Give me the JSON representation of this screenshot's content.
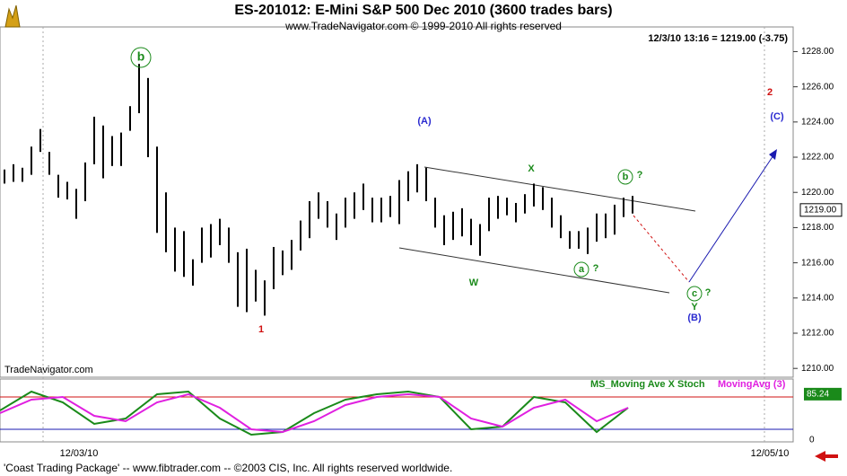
{
  "chart_data": {
    "type": "ohlc",
    "title": "ES-201012:  E-Mini S&P 500 Dec 2010  (3600 trades bars)",
    "subtitle": "www.TradeNavigator.com © 1999-2010 All rights reserved",
    "quote": "12/3/10 13:16 = 1219.00 (-3.75)",
    "watermark": "TradeNavigator.com",
    "footer": "'Coast Trading Package' -- www.fibtrader.com -- ©2003 CIS, Inc. All rights reserved worldwide.",
    "x_labels": [
      "12/03/10",
      "12/05/10"
    ],
    "high": [
      1221.3,
      1221.6,
      1221.4,
      1222.6,
      1223.6,
      1222.3,
      1221,
      1220.6,
      1220.2,
      1221.7,
      1224.3,
      1223.8,
      1223.2,
      1223.4,
      1224.9,
      1227.3,
      1226.5,
      1222.6,
      1220,
      1218,
      1217.8,
      1216.2,
      1218,
      1218.2,
      1218.5,
      1218,
      1216.6,
      1216.8,
      1215.6,
      1215,
      1216.9,
      1216.7,
      1217.3,
      1218.4,
      1219.5,
      1220,
      1219.5,
      1218.8,
      1219.7,
      1220,
      1220.5,
      1219.7,
      1219.7,
      1219.8,
      1220.7,
      1221.2,
      1221.6,
      1221.4,
      1219.7,
      1218.7,
      1218.9,
      1219.1,
      1218.5,
      1218.2,
      1219.7,
      1219.8,
      1219.7,
      1219.4,
      1219.9,
      1220.5,
      1220.3,
      1219.7,
      1218.7,
      1217.8,
      1217.8,
      1218,
      1218.8,
      1218.8,
      1219.3,
      1219.7,
      1219.8
    ],
    "low": [
      1220.5,
      1220.6,
      1220.6,
      1221,
      1222.3,
      1221,
      1219.7,
      1219.6,
      1218.5,
      1219.5,
      1221.6,
      1220.8,
      1221.5,
      1221.5,
      1223.5,
      1224.5,
      1222,
      1217.7,
      1216.6,
      1215.5,
      1215.2,
      1214.7,
      1216,
      1216.3,
      1217,
      1216,
      1213.5,
      1213.2,
      1213.8,
      1213,
      1214.5,
      1215.3,
      1215.6,
      1216.7,
      1217.4,
      1218.5,
      1218,
      1217.3,
      1218,
      1218.5,
      1219,
      1218.3,
      1218.3,
      1218.6,
      1218.2,
      1219.5,
      1220,
      1219.5,
      1218,
      1217,
      1217.3,
      1217.5,
      1217,
      1216.4,
      1217.8,
      1218.5,
      1218.7,
      1218.3,
      1218.8,
      1219.2,
      1219,
      1218,
      1217.4,
      1216.8,
      1216.8,
      1216.5,
      1217.2,
      1217.4,
      1217.6,
      1218.6,
      1218.8
    ],
    "ylim": [
      1209.5,
      1229.4
    ],
    "yticks": [
      {
        "value": 1210,
        "label": "1210.00"
      },
      {
        "value": 1212,
        "label": "1212.00"
      },
      {
        "value": 1214,
        "label": "1214.00"
      },
      {
        "value": 1216,
        "label": "1216.00"
      },
      {
        "value": 1218,
        "label": "1218.00"
      },
      {
        "value": 1220,
        "label": "1220.00"
      },
      {
        "value": 1222,
        "label": "1222.00"
      },
      {
        "value": 1224,
        "label": "1224.00"
      },
      {
        "value": 1226,
        "label": "1226.00"
      },
      {
        "value": 1228,
        "label": "1228.00"
      }
    ],
    "last_price": {
      "value": 1219,
      "label": "1219.00"
    },
    "annotations": [
      {
        "text": "b",
        "color": "#1a8a1a"
      },
      {
        "text": "1",
        "color": "#d01010"
      },
      {
        "text": "(A)",
        "color": "#2a2ad0"
      },
      {
        "text": "X",
        "color": "#1a8a1a"
      },
      {
        "text": "W",
        "color": "#1a8a1a"
      },
      {
        "text": "b",
        "color": "#1a8a1a"
      },
      {
        "text": "?",
        "color": "#1a8a1a"
      },
      {
        "text": "a",
        "color": "#1a8a1a"
      },
      {
        "text": "?",
        "color": "#1a8a1a"
      },
      {
        "text": "c",
        "color": "#1a8a1a"
      },
      {
        "text": "?",
        "color": "#1a8a1a"
      },
      {
        "text": "Y",
        "color": "#1a8a1a"
      },
      {
        "text": "(B)",
        "color": "#2a2ad0"
      },
      {
        "text": "2",
        "color": "#d01010"
      },
      {
        "text": "(C)",
        "color": "#2a2ad0"
      }
    ],
    "oscillator": {
      "ylim": [
        0,
        100
      ],
      "yticks": [
        0
      ],
      "series": [
        {
          "name": "MS_Moving Ave X Stoch",
          "color": "#1a8a1a",
          "values": [
            55,
            90,
            70,
            30,
            40,
            85,
            90,
            40,
            10,
            15,
            50,
            75,
            85,
            90,
            80,
            20,
            25,
            80,
            70,
            15,
            60
          ]
        },
        {
          "name": "MovingAvg (3)",
          "color": "#e020e0",
          "values": [
            50,
            75,
            80,
            45,
            35,
            70,
            85,
            60,
            20,
            15,
            35,
            65,
            80,
            85,
            80,
            40,
            25,
            60,
            75,
            35,
            60
          ]
        }
      ],
      "last": 85.24
    }
  }
}
